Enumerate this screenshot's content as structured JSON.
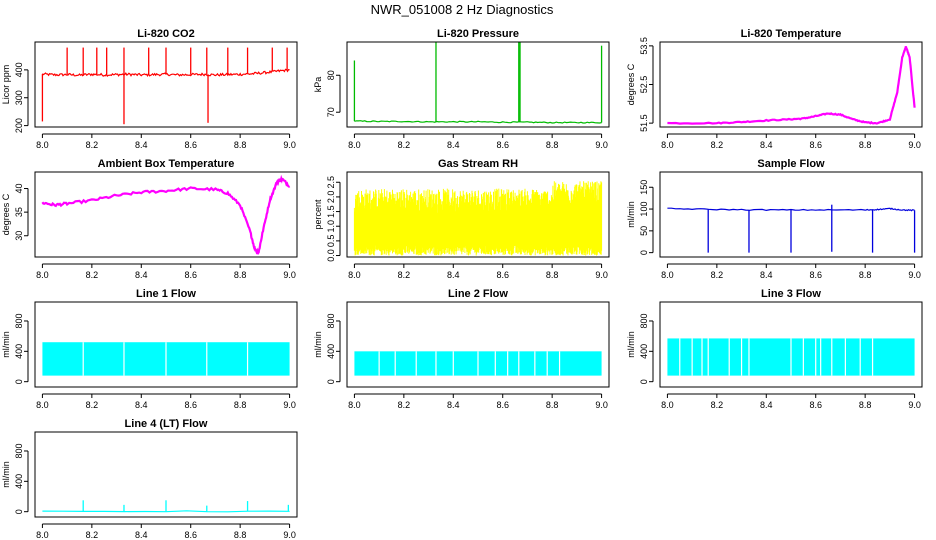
{
  "page": {
    "title": "NWR_051008  2 Hz Diagnostics"
  },
  "chart_data": [
    {
      "id": "co2",
      "type": "line",
      "title": "Li-820 CO2",
      "ylabel": "Licor ppm",
      "xlabel": "",
      "xlim": [
        7.97,
        9.03
      ],
      "ylim": [
        195,
        500
      ],
      "xticks": [
        "8.0",
        "8.2",
        "8.4",
        "8.6",
        "8.8",
        "9.0"
      ],
      "yticks": [
        "200",
        "300",
        "400"
      ],
      "color": "#ff0000",
      "series": [
        {
          "name": "CO2",
          "x": [
            8.0,
            8.05,
            8.1,
            8.15,
            8.2,
            8.25,
            8.3,
            8.35,
            8.4,
            8.45,
            8.5,
            8.55,
            8.6,
            8.65,
            8.7,
            8.75,
            8.8,
            8.85,
            8.9,
            8.95,
            9.0
          ],
          "values": [
            385,
            382,
            383,
            381,
            384,
            382,
            383,
            384,
            382,
            383,
            384,
            382,
            383,
            384,
            382,
            383,
            384,
            386,
            390,
            395,
            400
          ]
        }
      ],
      "spikes": [
        {
          "x": 8.0,
          "y": 215
        },
        {
          "x": 8.1,
          "y": 480
        },
        {
          "x": 8.165,
          "y": 480
        },
        {
          "x": 8.22,
          "y": 480
        },
        {
          "x": 8.26,
          "y": 480
        },
        {
          "x": 8.33,
          "y": 480
        },
        {
          "x": 8.33,
          "y": 205
        },
        {
          "x": 8.43,
          "y": 480
        },
        {
          "x": 8.5,
          "y": 480
        },
        {
          "x": 8.6,
          "y": 480
        },
        {
          "x": 8.665,
          "y": 480
        },
        {
          "x": 8.67,
          "y": 210
        },
        {
          "x": 8.75,
          "y": 480
        },
        {
          "x": 8.83,
          "y": 480
        },
        {
          "x": 8.93,
          "y": 480
        },
        {
          "x": 8.99,
          "y": 480
        }
      ]
    },
    {
      "id": "pressure",
      "type": "line",
      "title": "Li-820 Pressure",
      "ylabel": "kPa",
      "xlabel": "",
      "xlim": [
        7.97,
        9.03
      ],
      "ylim": [
        66,
        89
      ],
      "xticks": [
        "8.0",
        "8.2",
        "8.4",
        "8.6",
        "8.8",
        "9.0"
      ],
      "yticks": [
        "70",
        "80"
      ],
      "color": "#00bb00",
      "series": [
        {
          "name": "Pressure",
          "x": [
            8.0,
            8.1,
            8.2,
            8.3,
            8.4,
            8.5,
            8.6,
            8.7,
            8.8,
            8.9,
            9.0
          ],
          "values": [
            67.6,
            67.5,
            67.5,
            67.4,
            67.4,
            67.4,
            67.3,
            67.3,
            67.2,
            67.2,
            67.2
          ]
        }
      ],
      "spikes": [
        {
          "x": 8.0,
          "y": 84
        },
        {
          "x": 8.33,
          "y": 89
        },
        {
          "x": 8.665,
          "y": 89
        },
        {
          "x": 8.67,
          "y": 89
        },
        {
          "x": 9.0,
          "y": 88
        }
      ]
    },
    {
      "id": "temperature",
      "type": "line",
      "title": "Li-820 Temperature",
      "ylabel": "degrees C",
      "xlabel": "",
      "xlim": [
        7.97,
        9.03
      ],
      "ylim": [
        51.4,
        53.6
      ],
      "xticks": [
        "8.0",
        "8.2",
        "8.4",
        "8.6",
        "8.8",
        "9.0"
      ],
      "yticks": [
        "51.5",
        "52.5",
        "53.5"
      ],
      "color": "#ff00ff",
      "series": [
        {
          "name": "Temperature",
          "x": [
            8.0,
            8.2,
            8.3,
            8.4,
            8.5,
            8.55,
            8.6,
            8.65,
            8.7,
            8.75,
            8.8,
            8.85,
            8.9,
            8.93,
            8.95,
            8.965,
            8.98,
            9.0
          ],
          "values": [
            51.5,
            51.5,
            51.53,
            51.57,
            51.6,
            51.62,
            51.68,
            51.75,
            51.72,
            51.6,
            51.52,
            51.5,
            51.6,
            52.3,
            53.2,
            53.48,
            53.2,
            51.9
          ]
        }
      ],
      "spikes": []
    },
    {
      "id": "ambient",
      "type": "line",
      "title": "Ambient Box Temperature",
      "ylabel": "degrees C",
      "xlabel": "",
      "xlim": [
        7.97,
        9.03
      ],
      "ylim": [
        25.5,
        43.5
      ],
      "xticks": [
        "8.0",
        "8.2",
        "8.4",
        "8.6",
        "8.8",
        "9.0"
      ],
      "yticks": [
        "30",
        "35",
        "40"
      ],
      "color": "#ff00ff",
      "series": [
        {
          "name": "Ambient",
          "x": [
            8.0,
            8.05,
            8.1,
            8.2,
            8.3,
            8.4,
            8.5,
            8.6,
            8.7,
            8.75,
            8.8,
            8.84,
            8.86,
            8.875,
            8.89,
            8.92,
            8.95,
            8.97,
            9.0
          ],
          "values": [
            37.0,
            36.5,
            36.8,
            37.5,
            38.5,
            39.2,
            39.5,
            40.0,
            39.8,
            39.0,
            36.5,
            31.0,
            27.0,
            26.5,
            30.5,
            37.5,
            41.5,
            42.0,
            40.5
          ]
        }
      ],
      "spikes": []
    },
    {
      "id": "rh",
      "type": "line",
      "title": "Gas Stream RH",
      "ylabel": "percent",
      "xlabel": "",
      "xlim": [
        7.97,
        9.03
      ],
      "ylim": [
        -0.05,
        2.85
      ],
      "xticks": [
        "8.0",
        "8.2",
        "8.4",
        "8.6",
        "8.8",
        "9.0"
      ],
      "yticks": [
        "0.0",
        "0.5",
        "1.0",
        "1.5",
        "2.0",
        "2.5"
      ],
      "color": "#ffff00",
      "series": [
        {
          "name": "RH",
          "x": [
            8.0,
            9.0
          ],
          "values": [
            1.0,
            1.0
          ]
        }
      ],
      "band": {
        "low": 0.3,
        "high": 1.7,
        "min": 0.0,
        "max": 2.4
      },
      "spikes": []
    },
    {
      "id": "sampleflow",
      "type": "line",
      "title": "Sample Flow",
      "ylabel": "ml/min",
      "xlabel": "",
      "xlim": [
        7.97,
        9.03
      ],
      "ylim": [
        -10,
        185
      ],
      "xticks": [
        "8.0",
        "8.2",
        "8.4",
        "8.6",
        "8.8",
        "9.0"
      ],
      "yticks": [
        "0",
        "50",
        "100",
        "150"
      ],
      "color": "#0000dd",
      "series": [
        {
          "name": "Sample Flow",
          "x": [
            8.0,
            8.2,
            8.4,
            8.6,
            8.8,
            8.85,
            8.9,
            8.95,
            9.0
          ],
          "values": [
            101,
            99,
            98,
            98,
            98,
            99,
            101,
            98,
            97
          ]
        }
      ],
      "spikes": [
        {
          "x": 8.165,
          "y": 0
        },
        {
          "x": 8.33,
          "y": 0
        },
        {
          "x": 8.5,
          "y": 0
        },
        {
          "x": 8.665,
          "y": 2
        },
        {
          "x": 8.665,
          "y": 110
        },
        {
          "x": 8.83,
          "y": 0
        },
        {
          "x": 9.0,
          "y": 0
        }
      ]
    },
    {
      "id": "line1",
      "type": "line",
      "title": "Line 1 Flow",
      "ylabel": "ml/min",
      "xlabel": "",
      "xlim": [
        7.97,
        9.03
      ],
      "ylim": [
        -70,
        1050
      ],
      "xticks": [
        "8.0",
        "8.2",
        "8.4",
        "8.6",
        "8.8",
        "9.0"
      ],
      "yticks": [
        "0",
        "400",
        "800"
      ],
      "color": "#00ffff",
      "series": [
        {
          "name": "Line 1",
          "x": [
            8.0,
            9.0
          ],
          "values": [
            300,
            300
          ]
        }
      ],
      "band": {
        "low": 80,
        "high": 520,
        "topEnd": 490
      },
      "gaps": [
        8.165,
        8.33,
        8.5,
        8.665,
        8.83
      ],
      "spikes": []
    },
    {
      "id": "line2",
      "type": "line",
      "title": "Line 2 Flow",
      "ylabel": "ml/min",
      "xlabel": "",
      "xlim": [
        7.97,
        9.03
      ],
      "ylim": [
        -70,
        1050
      ],
      "xticks": [
        "8.0",
        "8.2",
        "8.4",
        "8.6",
        "8.8",
        "9.0"
      ],
      "yticks": [
        "0",
        "400",
        "800"
      ],
      "color": "#00ffff",
      "series": [
        {
          "name": "Line 2",
          "x": [
            8.0,
            9.0
          ],
          "values": [
            250,
            250
          ]
        }
      ],
      "band": {
        "low": 80,
        "high": 400,
        "topEnd": 380
      },
      "gaps": [
        8.1,
        8.165,
        8.25,
        8.33,
        8.4,
        8.5,
        8.57,
        8.62,
        8.665,
        8.73,
        8.78,
        8.83
      ],
      "spikes": []
    },
    {
      "id": "line3",
      "type": "line",
      "title": "Line 3 Flow",
      "ylabel": "ml/min",
      "xlabel": "",
      "xlim": [
        7.97,
        9.03
      ],
      "ylim": [
        -70,
        1050
      ],
      "xticks": [
        "8.0",
        "8.2",
        "8.4",
        "8.6",
        "8.8",
        "9.0"
      ],
      "yticks": [
        "0",
        "400",
        "800"
      ],
      "color": "#00ffff",
      "series": [
        {
          "name": "Line 3",
          "x": [
            8.0,
            9.0
          ],
          "values": [
            320,
            320
          ]
        }
      ],
      "band": {
        "low": 80,
        "high": 570,
        "topEnd": 540
      },
      "gaps": [
        8.05,
        8.1,
        8.14,
        8.165,
        8.25,
        8.3,
        8.33,
        8.5,
        8.55,
        8.6,
        8.62,
        8.665,
        8.72,
        8.78,
        8.83
      ],
      "spikes": []
    },
    {
      "id": "line4",
      "type": "line",
      "title": "Line 4 (LT) Flow",
      "ylabel": "ml/min",
      "xlabel": "",
      "xlim": [
        7.97,
        9.03
      ],
      "ylim": [
        -70,
        1050
      ],
      "xticks": [
        "8.0",
        "8.2",
        "8.4",
        "8.6",
        "8.8",
        "9.0"
      ],
      "yticks": [
        "0",
        "400",
        "800"
      ],
      "color": "#00ffff",
      "series": [
        {
          "name": "Line 4",
          "x": [
            8.0,
            9.0
          ],
          "values": [
            5,
            5
          ]
        }
      ],
      "spikes": [
        {
          "x": 8.165,
          "y": 150
        },
        {
          "x": 8.33,
          "y": 90
        },
        {
          "x": 8.5,
          "y": 150
        },
        {
          "x": 8.665,
          "y": 80
        },
        {
          "x": 8.83,
          "y": 140
        },
        {
          "x": 8.995,
          "y": 90
        }
      ]
    }
  ]
}
